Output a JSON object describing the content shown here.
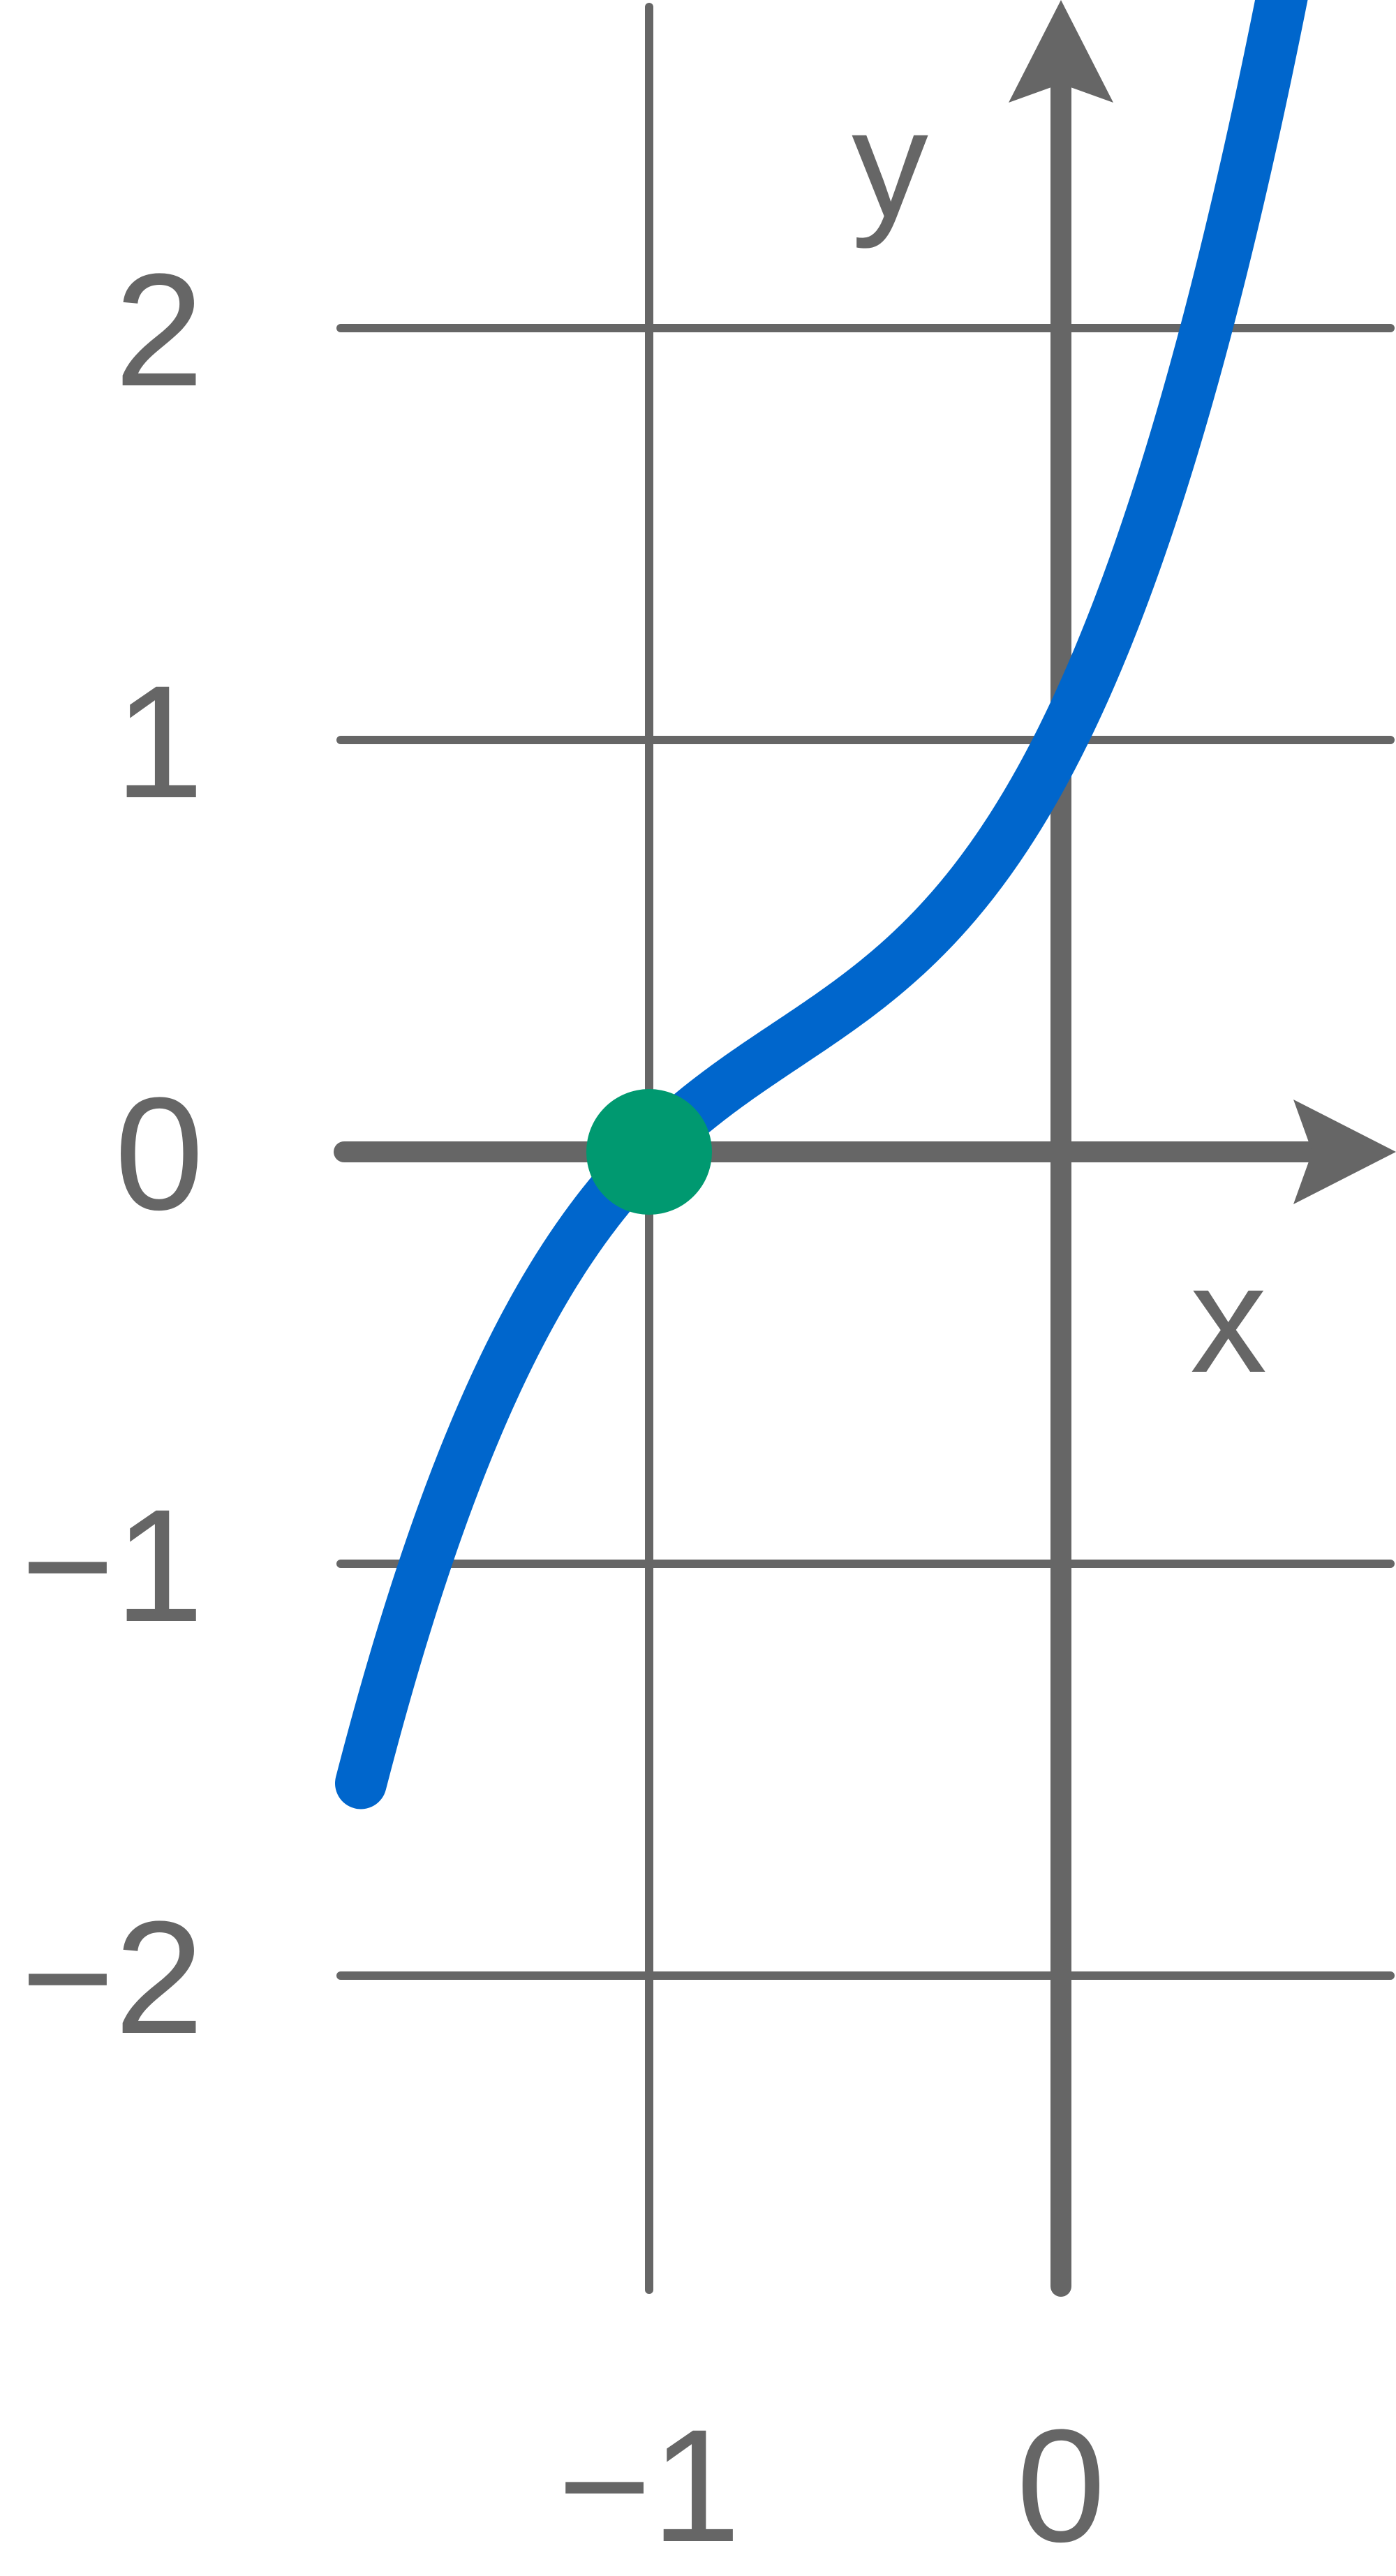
{
  "chart_data": {
    "type": "line",
    "title": "",
    "xlabel": "x",
    "ylabel": "y",
    "xlim": [
      -1.75,
      0.8
    ],
    "ylim": [
      -2.75,
      2.75
    ],
    "grid": true,
    "x_ticks": [
      -1,
      0
    ],
    "x_tick_labels": [
      "−1",
      "0"
    ],
    "y_ticks": [
      2,
      1,
      0,
      -1,
      -2
    ],
    "y_tick_labels": [
      "2",
      "1",
      "0",
      "−1",
      "−2"
    ],
    "series": [
      {
        "name": "curve",
        "formula": "y = (x + 1)^3 - (x + 1)^2 + (x + 1)",
        "x_range": [
          -1.7,
          0.75
        ],
        "color": "#0066cc"
      }
    ],
    "points": [
      {
        "x": -1,
        "y": 0,
        "color": "#009970"
      }
    ],
    "colors": {
      "axis": "#666666",
      "grid": "#666666",
      "curve": "#0066cc",
      "point": "#009970"
    }
  }
}
